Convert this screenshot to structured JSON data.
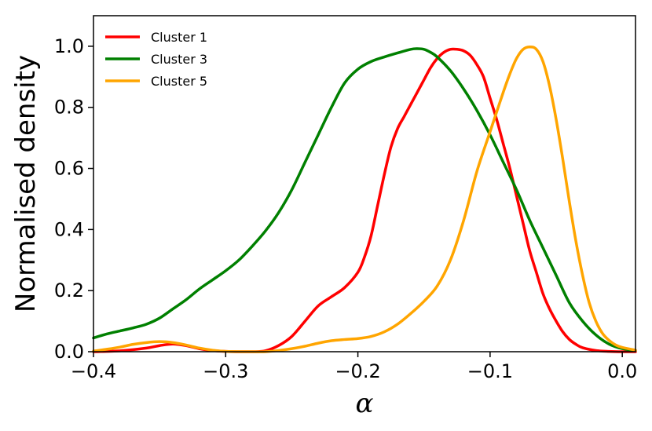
{
  "chart_data": {
    "type": "line",
    "xlabel": "α",
    "ylabel": "Normalised density",
    "xlim": [
      -0.4,
      0.01
    ],
    "ylim": [
      0.0,
      1.1
    ],
    "x_ticks": [
      -0.4,
      -0.3,
      -0.2,
      -0.1,
      0.0
    ],
    "x_tick_labels": [
      "−0.4",
      "−0.3",
      "−0.2",
      "−0.1",
      "0.0"
    ],
    "y_ticks": [
      0.0,
      0.2,
      0.4,
      0.6,
      0.8,
      1.0
    ],
    "y_tick_labels": [
      "0.0",
      "0.2",
      "0.4",
      "0.6",
      "0.8",
      "1.0"
    ],
    "grid": false,
    "legend_position": "top-left",
    "series": [
      {
        "name": "Cluster 1",
        "color": "#ff0000",
        "points": [
          [
            -0.4,
            0.0
          ],
          [
            -0.38,
            0.003
          ],
          [
            -0.36,
            0.012
          ],
          [
            -0.35,
            0.02
          ],
          [
            -0.34,
            0.025
          ],
          [
            -0.33,
            0.02
          ],
          [
            -0.32,
            0.01
          ],
          [
            -0.31,
            0.004
          ],
          [
            -0.3,
            0.001
          ],
          [
            -0.28,
            0.0
          ],
          [
            -0.27,
            0.003
          ],
          [
            -0.26,
            0.02
          ],
          [
            -0.25,
            0.05
          ],
          [
            -0.24,
            0.1
          ],
          [
            -0.23,
            0.15
          ],
          [
            -0.22,
            0.18
          ],
          [
            -0.21,
            0.21
          ],
          [
            -0.2,
            0.26
          ],
          [
            -0.195,
            0.31
          ],
          [
            -0.19,
            0.38
          ],
          [
            -0.185,
            0.48
          ],
          [
            -0.18,
            0.58
          ],
          [
            -0.175,
            0.67
          ],
          [
            -0.17,
            0.73
          ],
          [
            -0.165,
            0.77
          ],
          [
            -0.16,
            0.81
          ],
          [
            -0.155,
            0.85
          ],
          [
            -0.15,
            0.89
          ],
          [
            -0.145,
            0.93
          ],
          [
            -0.14,
            0.96
          ],
          [
            -0.135,
            0.98
          ],
          [
            -0.13,
            0.99
          ],
          [
            -0.125,
            0.99
          ],
          [
            -0.12,
            0.985
          ],
          [
            -0.115,
            0.97
          ],
          [
            -0.11,
            0.94
          ],
          [
            -0.105,
            0.9
          ],
          [
            -0.1,
            0.83
          ],
          [
            -0.095,
            0.76
          ],
          [
            -0.09,
            0.68
          ],
          [
            -0.085,
            0.6
          ],
          [
            -0.08,
            0.51
          ],
          [
            -0.075,
            0.42
          ],
          [
            -0.07,
            0.33
          ],
          [
            -0.065,
            0.26
          ],
          [
            -0.06,
            0.19
          ],
          [
            -0.055,
            0.14
          ],
          [
            -0.05,
            0.1
          ],
          [
            -0.045,
            0.065
          ],
          [
            -0.04,
            0.04
          ],
          [
            -0.035,
            0.024
          ],
          [
            -0.03,
            0.013
          ],
          [
            -0.02,
            0.004
          ],
          [
            -0.01,
            0.001
          ],
          [
            0.0,
            0.0
          ],
          [
            0.01,
            0.0
          ]
        ]
      },
      {
        "name": "Cluster 3",
        "color": "#008000",
        "points": [
          [
            -0.4,
            0.045
          ],
          [
            -0.39,
            0.058
          ],
          [
            -0.38,
            0.068
          ],
          [
            -0.37,
            0.078
          ],
          [
            -0.36,
            0.09
          ],
          [
            -0.35,
            0.11
          ],
          [
            -0.34,
            0.14
          ],
          [
            -0.33,
            0.17
          ],
          [
            -0.32,
            0.205
          ],
          [
            -0.31,
            0.235
          ],
          [
            -0.3,
            0.265
          ],
          [
            -0.29,
            0.3
          ],
          [
            -0.28,
            0.345
          ],
          [
            -0.27,
            0.395
          ],
          [
            -0.26,
            0.455
          ],
          [
            -0.25,
            0.53
          ],
          [
            -0.24,
            0.62
          ],
          [
            -0.23,
            0.71
          ],
          [
            -0.22,
            0.8
          ],
          [
            -0.21,
            0.88
          ],
          [
            -0.2,
            0.925
          ],
          [
            -0.19,
            0.95
          ],
          [
            -0.18,
            0.965
          ],
          [
            -0.17,
            0.978
          ],
          [
            -0.16,
            0.99
          ],
          [
            -0.155,
            0.992
          ],
          [
            -0.15,
            0.99
          ],
          [
            -0.145,
            0.98
          ],
          [
            -0.14,
            0.965
          ],
          [
            -0.13,
            0.92
          ],
          [
            -0.12,
            0.86
          ],
          [
            -0.11,
            0.79
          ],
          [
            -0.1,
            0.71
          ],
          [
            -0.09,
            0.62
          ],
          [
            -0.08,
            0.53
          ],
          [
            -0.07,
            0.43
          ],
          [
            -0.06,
            0.34
          ],
          [
            -0.05,
            0.25
          ],
          [
            -0.04,
            0.16
          ],
          [
            -0.03,
            0.1
          ],
          [
            -0.02,
            0.055
          ],
          [
            -0.01,
            0.025
          ],
          [
            0.0,
            0.01
          ],
          [
            0.01,
            0.004
          ]
        ]
      },
      {
        "name": "Cluster 5",
        "color": "#ffa500",
        "points": [
          [
            -0.4,
            0.002
          ],
          [
            -0.39,
            0.008
          ],
          [
            -0.38,
            0.015
          ],
          [
            -0.37,
            0.024
          ],
          [
            -0.36,
            0.03
          ],
          [
            -0.35,
            0.033
          ],
          [
            -0.34,
            0.03
          ],
          [
            -0.33,
            0.022
          ],
          [
            -0.32,
            0.012
          ],
          [
            -0.31,
            0.005
          ],
          [
            -0.3,
            0.001
          ],
          [
            -0.28,
            0.0
          ],
          [
            -0.27,
            0.0
          ],
          [
            -0.26,
            0.004
          ],
          [
            -0.25,
            0.01
          ],
          [
            -0.24,
            0.018
          ],
          [
            -0.23,
            0.028
          ],
          [
            -0.22,
            0.036
          ],
          [
            -0.21,
            0.04
          ],
          [
            -0.2,
            0.043
          ],
          [
            -0.19,
            0.05
          ],
          [
            -0.18,
            0.065
          ],
          [
            -0.17,
            0.09
          ],
          [
            -0.16,
            0.125
          ],
          [
            -0.15,
            0.165
          ],
          [
            -0.14,
            0.215
          ],
          [
            -0.13,
            0.3
          ],
          [
            -0.12,
            0.43
          ],
          [
            -0.11,
            0.59
          ],
          [
            -0.1,
            0.72
          ],
          [
            -0.09,
            0.85
          ],
          [
            -0.085,
            0.91
          ],
          [
            -0.08,
            0.96
          ],
          [
            -0.075,
            0.99
          ],
          [
            -0.07,
            0.998
          ],
          [
            -0.065,
            0.99
          ],
          [
            -0.06,
            0.95
          ],
          [
            -0.055,
            0.87
          ],
          [
            -0.05,
            0.76
          ],
          [
            -0.045,
            0.63
          ],
          [
            -0.04,
            0.49
          ],
          [
            -0.035,
            0.36
          ],
          [
            -0.03,
            0.25
          ],
          [
            -0.025,
            0.16
          ],
          [
            -0.02,
            0.1
          ],
          [
            -0.015,
            0.06
          ],
          [
            -0.01,
            0.037
          ],
          [
            -0.005,
            0.022
          ],
          [
            0.0,
            0.014
          ],
          [
            0.01,
            0.005
          ]
        ]
      }
    ]
  }
}
